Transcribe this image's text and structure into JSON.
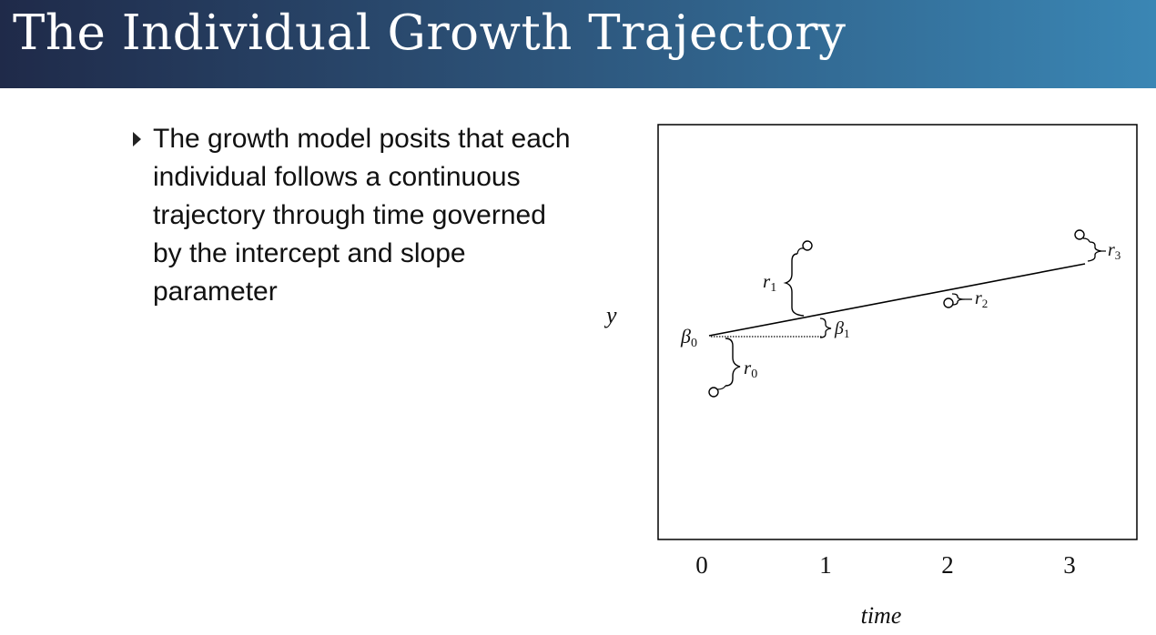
{
  "slide": {
    "title": "The Individual Growth Trajectory",
    "bullet": "The growth model posits that each individual follows a continuous trajectory through time governed by the intercept and slope parameter"
  },
  "diagram": {
    "y_axis_label": "y",
    "x_axis_label": "time",
    "x_ticks": [
      "0",
      "1",
      "2",
      "3"
    ],
    "labels": {
      "beta0": "β",
      "beta0_sub": "0",
      "beta1": "β",
      "beta1_sub": "1",
      "r0": "r",
      "r0_sub": "0",
      "r1": "r",
      "r1_sub": "1",
      "r2": "r",
      "r2_sub": "2",
      "r3": "r",
      "r3_sub": "3"
    }
  }
}
